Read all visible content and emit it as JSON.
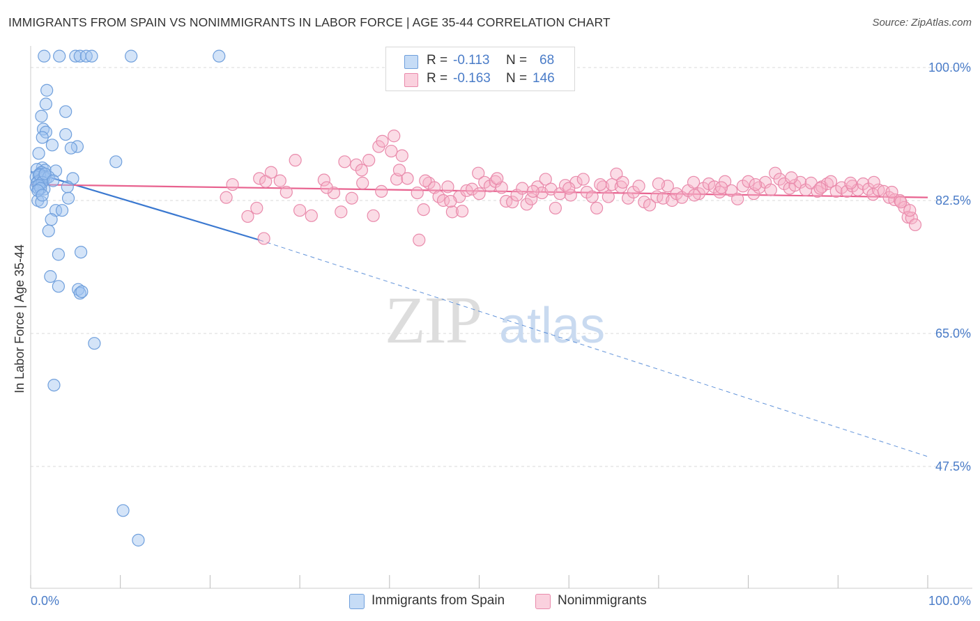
{
  "title": "IMMIGRANTS FROM SPAIN VS NONIMMIGRANTS IN LABOR FORCE | AGE 35-44 CORRELATION CHART",
  "source": "Source: ZipAtlas.com",
  "watermark": {
    "zip": "ZIP",
    "atlas": "atlas"
  },
  "colors": {
    "blue_fill": "rgba(160,196,240,0.45)",
    "blue_stroke": "#6f9fdc",
    "blue_line": "#3a78d0",
    "pink_fill": "rgba(246,178,200,0.45)",
    "pink_stroke": "#e98aab",
    "pink_line": "#e8628f",
    "grid": "#d9d9d9",
    "tick_text": "#4a7cc8"
  },
  "legend": {
    "rows": [
      {
        "r_label": "R =",
        "r_value": "-0.113",
        "n_label": "N =",
        "n_value": "68"
      },
      {
        "r_label": "R =",
        "r_value": "-0.163",
        "n_label": "N =",
        "n_value": "146"
      }
    ]
  },
  "bottom_legend": [
    "Immigrants from Spain",
    "Nonimmigrants"
  ],
  "chart_data": {
    "type": "scatter",
    "title": "IMMIGRANTS FROM SPAIN VS NONIMMIGRANTS IN LABOR FORCE | AGE 35-44 CORRELATION CHART",
    "xlabel": "",
    "ylabel": "In Labor Force | Age 35-44",
    "x_tick_labels": [
      "0.0%",
      "100.0%"
    ],
    "y_tick_labels": [
      "100.0%",
      "82.5%",
      "65.0%",
      "47.5%"
    ],
    "y_ticks": [
      100.0,
      82.5,
      65.0,
      47.5
    ],
    "xlim": [
      0,
      100
    ],
    "ylim": [
      30,
      101.5
    ],
    "grid": true,
    "legend_position": "top-center",
    "series": [
      {
        "name": "Immigrants from Spain",
        "R": -0.113,
        "N": 68,
        "trend": {
          "x": [
            0,
            25.5,
            100
          ],
          "y": [
            86.3,
            77.3,
            48.8
          ],
          "solid_until_x": 25.5
        },
        "points": [
          [
            1.5,
            101.5
          ],
          [
            3.2,
            101.5
          ],
          [
            5.0,
            101.5
          ],
          [
            5.5,
            101.5
          ],
          [
            6.2,
            101.5
          ],
          [
            6.8,
            101.5
          ],
          [
            11.2,
            101.5
          ],
          [
            21.0,
            101.5
          ],
          [
            1.8,
            97.0
          ],
          [
            1.7,
            95.2
          ],
          [
            3.9,
            94.2
          ],
          [
            1.2,
            93.6
          ],
          [
            1.4,
            91.9
          ],
          [
            1.7,
            91.5
          ],
          [
            3.9,
            91.2
          ],
          [
            1.3,
            90.8
          ],
          [
            2.4,
            89.8
          ],
          [
            5.2,
            89.6
          ],
          [
            0.9,
            88.7
          ],
          [
            4.5,
            89.4
          ],
          [
            9.5,
            87.6
          ],
          [
            1.3,
            86.8
          ],
          [
            1.6,
            86.5
          ],
          [
            0.7,
            86.6
          ],
          [
            2.8,
            86.4
          ],
          [
            1.0,
            86.0
          ],
          [
            1.2,
            86.2
          ],
          [
            0.9,
            85.8
          ],
          [
            0.6,
            85.6
          ],
          [
            1.1,
            85.2
          ],
          [
            1.7,
            85.4
          ],
          [
            4.7,
            85.4
          ],
          [
            0.8,
            85.0
          ],
          [
            0.7,
            84.8
          ],
          [
            1.1,
            84.6
          ],
          [
            0.6,
            84.3
          ],
          [
            0.9,
            84.0
          ],
          [
            1.5,
            84.0
          ],
          [
            4.1,
            84.3
          ],
          [
            1.5,
            85.7
          ],
          [
            0.8,
            82.5
          ],
          [
            1.2,
            82.3
          ],
          [
            4.2,
            82.8
          ],
          [
            2.8,
            81.2
          ],
          [
            3.5,
            81.2
          ],
          [
            2.3,
            80.0
          ],
          [
            2.0,
            78.5
          ],
          [
            5.6,
            75.7
          ],
          [
            3.1,
            75.4
          ],
          [
            2.2,
            72.5
          ],
          [
            3.1,
            71.2
          ],
          [
            5.3,
            70.8
          ],
          [
            5.5,
            70.3
          ],
          [
            5.7,
            70.5
          ],
          [
            7.1,
            63.7
          ],
          [
            2.6,
            58.2
          ],
          [
            10.3,
            41.7
          ],
          [
            12.0,
            37.8
          ],
          [
            1.5,
            85.5
          ],
          [
            1.0,
            85.9
          ],
          [
            2.0,
            85.6
          ],
          [
            1.3,
            84.9
          ],
          [
            0.9,
            84.5
          ],
          [
            1.6,
            86.0
          ],
          [
            1.1,
            84.1
          ],
          [
            0.8,
            83.8
          ],
          [
            1.3,
            83.2
          ],
          [
            2.5,
            85.1
          ]
        ]
      },
      {
        "name": "Nonimmigrants",
        "R": -0.163,
        "N": 146,
        "trend": {
          "x": [
            0,
            100
          ],
          "y": [
            84.6,
            82.9
          ]
        },
        "points": [
          [
            21.8,
            82.9
          ],
          [
            24.2,
            80.4
          ],
          [
            25.2,
            81.5
          ],
          [
            25.5,
            85.4
          ],
          [
            26.2,
            85.0
          ],
          [
            26.8,
            86.2
          ],
          [
            27.8,
            85.1
          ],
          [
            26.0,
            77.5
          ],
          [
            28.5,
            83.6
          ],
          [
            29.5,
            87.8
          ],
          [
            30.0,
            81.2
          ],
          [
            31.3,
            80.5
          ],
          [
            32.7,
            85.2
          ],
          [
            33.8,
            83.5
          ],
          [
            34.6,
            81.0
          ],
          [
            35.0,
            87.6
          ],
          [
            35.8,
            82.8
          ],
          [
            36.3,
            87.2
          ],
          [
            36.9,
            86.5
          ],
          [
            37.7,
            87.8
          ],
          [
            38.2,
            80.5
          ],
          [
            38.8,
            89.6
          ],
          [
            39.1,
            83.7
          ],
          [
            39.2,
            90.3
          ],
          [
            40.2,
            89.0
          ],
          [
            40.5,
            91.0
          ],
          [
            40.8,
            85.3
          ],
          [
            41.4,
            88.4
          ],
          [
            41.1,
            86.5
          ],
          [
            42.0,
            85.4
          ],
          [
            43.1,
            83.5
          ],
          [
            43.3,
            77.3
          ],
          [
            43.8,
            81.3
          ],
          [
            44.4,
            84.8
          ],
          [
            45.0,
            84.2
          ],
          [
            45.5,
            83.0
          ],
          [
            46.0,
            82.5
          ],
          [
            46.5,
            84.3
          ],
          [
            47.0,
            81.0
          ],
          [
            47.8,
            83.0
          ],
          [
            48.1,
            81.1
          ],
          [
            48.6,
            83.8
          ],
          [
            49.2,
            84.0
          ],
          [
            49.9,
            86.1
          ],
          [
            50.6,
            84.9
          ],
          [
            51.2,
            84.4
          ],
          [
            51.8,
            85.0
          ],
          [
            52.5,
            84.2
          ],
          [
            53.0,
            82.4
          ],
          [
            53.7,
            82.3
          ],
          [
            54.2,
            83.2
          ],
          [
            54.8,
            84.1
          ],
          [
            55.3,
            82.0
          ],
          [
            55.8,
            82.7
          ],
          [
            56.5,
            84.3
          ],
          [
            57.0,
            83.5
          ],
          [
            57.4,
            85.3
          ],
          [
            58.0,
            84.0
          ],
          [
            58.5,
            81.5
          ],
          [
            59.0,
            83.4
          ],
          [
            59.6,
            84.5
          ],
          [
            60.2,
            83.2
          ],
          [
            60.8,
            84.9
          ],
          [
            61.6,
            85.3
          ],
          [
            62.0,
            83.6
          ],
          [
            62.6,
            83.0
          ],
          [
            63.1,
            81.5
          ],
          [
            63.8,
            84.3
          ],
          [
            64.4,
            83.0
          ],
          [
            64.8,
            84.6
          ],
          [
            65.3,
            86.0
          ],
          [
            65.8,
            84.3
          ],
          [
            66.6,
            82.8
          ],
          [
            67.2,
            83.6
          ],
          [
            67.8,
            84.4
          ],
          [
            68.4,
            82.3
          ],
          [
            69.0,
            81.9
          ],
          [
            69.8,
            83.0
          ],
          [
            70.5,
            82.8
          ],
          [
            71.0,
            84.4
          ],
          [
            71.5,
            82.5
          ],
          [
            72.0,
            83.4
          ],
          [
            72.6,
            82.9
          ],
          [
            73.3,
            83.8
          ],
          [
            73.9,
            84.9
          ],
          [
            74.5,
            83.4
          ],
          [
            75.0,
            84.1
          ],
          [
            75.6,
            84.7
          ],
          [
            76.2,
            84.3
          ],
          [
            76.8,
            83.6
          ],
          [
            77.4,
            85.0
          ],
          [
            78.1,
            83.8
          ],
          [
            78.8,
            82.7
          ],
          [
            79.4,
            84.4
          ],
          [
            80.0,
            85.0
          ],
          [
            80.6,
            83.4
          ],
          [
            81.2,
            84.2
          ],
          [
            81.9,
            84.9
          ],
          [
            82.5,
            83.9
          ],
          [
            83.0,
            86.1
          ],
          [
            83.5,
            85.3
          ],
          [
            84.0,
            84.7
          ],
          [
            84.6,
            84.1
          ],
          [
            85.2,
            84.5
          ],
          [
            85.8,
            84.9
          ],
          [
            86.4,
            83.9
          ],
          [
            87.0,
            84.8
          ],
          [
            87.7,
            83.7
          ],
          [
            88.2,
            84.3
          ],
          [
            88.8,
            84.7
          ],
          [
            89.2,
            85.0
          ],
          [
            89.8,
            83.7
          ],
          [
            90.4,
            84.2
          ],
          [
            91.0,
            83.7
          ],
          [
            91.6,
            84.4
          ],
          [
            92.2,
            83.9
          ],
          [
            92.8,
            84.7
          ],
          [
            93.4,
            84.0
          ],
          [
            93.9,
            83.3
          ],
          [
            94.5,
            83.9
          ],
          [
            95.1,
            83.7
          ],
          [
            95.7,
            82.9
          ],
          [
            96.3,
            82.6
          ],
          [
            96.9,
            82.5
          ],
          [
            97.4,
            81.6
          ],
          [
            97.8,
            80.3
          ],
          [
            98.2,
            80.2
          ],
          [
            98.6,
            79.3
          ],
          [
            22.5,
            84.6
          ],
          [
            33.0,
            84.2
          ],
          [
            37.0,
            84.8
          ],
          [
            44.0,
            85.1
          ],
          [
            50.0,
            83.4
          ],
          [
            52.0,
            85.4
          ],
          [
            56.0,
            83.7
          ],
          [
            60.0,
            84.1
          ],
          [
            63.5,
            84.6
          ],
          [
            66.0,
            84.9
          ],
          [
            70.0,
            84.7
          ],
          [
            74.0,
            83.2
          ],
          [
            77.0,
            84.2
          ],
          [
            80.8,
            84.6
          ],
          [
            84.8,
            85.5
          ],
          [
            88.0,
            84.1
          ],
          [
            91.4,
            84.8
          ],
          [
            94.0,
            84.9
          ],
          [
            96.0,
            83.6
          ],
          [
            97.0,
            82.3
          ],
          [
            98.0,
            81.2
          ],
          [
            46.8,
            82.4
          ]
        ]
      }
    ]
  }
}
